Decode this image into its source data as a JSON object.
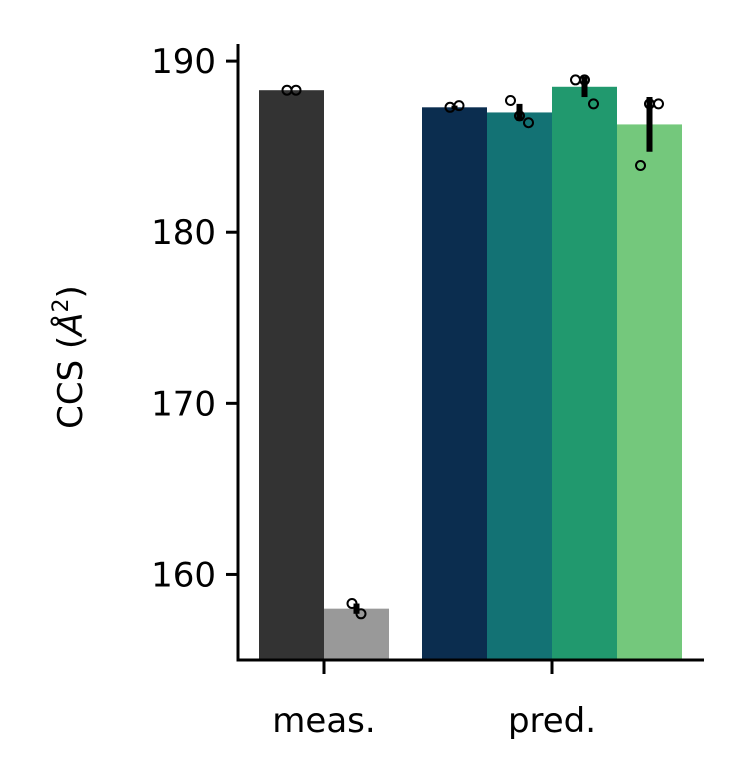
{
  "chart_data": {
    "type": "bar",
    "ylabel": "CCS (Å²)",
    "ylabel_parts": {
      "prefix": "CCS (",
      "unit": "Å",
      "exponent": "2",
      "suffix": ")"
    },
    "xlabel": "",
    "ylim": [
      155,
      191
    ],
    "yticks": [
      160,
      170,
      180,
      190
    ],
    "grid": false,
    "legend": "none",
    "categories": [
      "meas.",
      "pred."
    ],
    "groups": [
      {
        "category": "meas.",
        "bars": [
          {
            "value": 188.3,
            "error": 0.0,
            "color": "#333333",
            "points": [
              188.3,
              188.3
            ]
          },
          {
            "value": 158.0,
            "error": 0.3,
            "color": "#999999",
            "points": [
              158.3,
              157.7
            ]
          }
        ]
      },
      {
        "category": "pred.",
        "bars": [
          {
            "value": 187.3,
            "error": 0.1,
            "color": "#0b2d4f",
            "points": [
              187.3,
              187.4
            ]
          },
          {
            "value": 187.0,
            "error": 0.5,
            "color": "#137274",
            "points": [
              187.7,
              186.8,
              186.4
            ]
          },
          {
            "value": 188.5,
            "error": 0.6,
            "color": "#21996e",
            "points": [
              188.9,
              188.9,
              187.5
            ]
          },
          {
            "value": 186.3,
            "error": 1.6,
            "color": "#74c87c",
            "points": [
              183.9,
              187.5,
              187.5
            ]
          }
        ]
      }
    ]
  }
}
